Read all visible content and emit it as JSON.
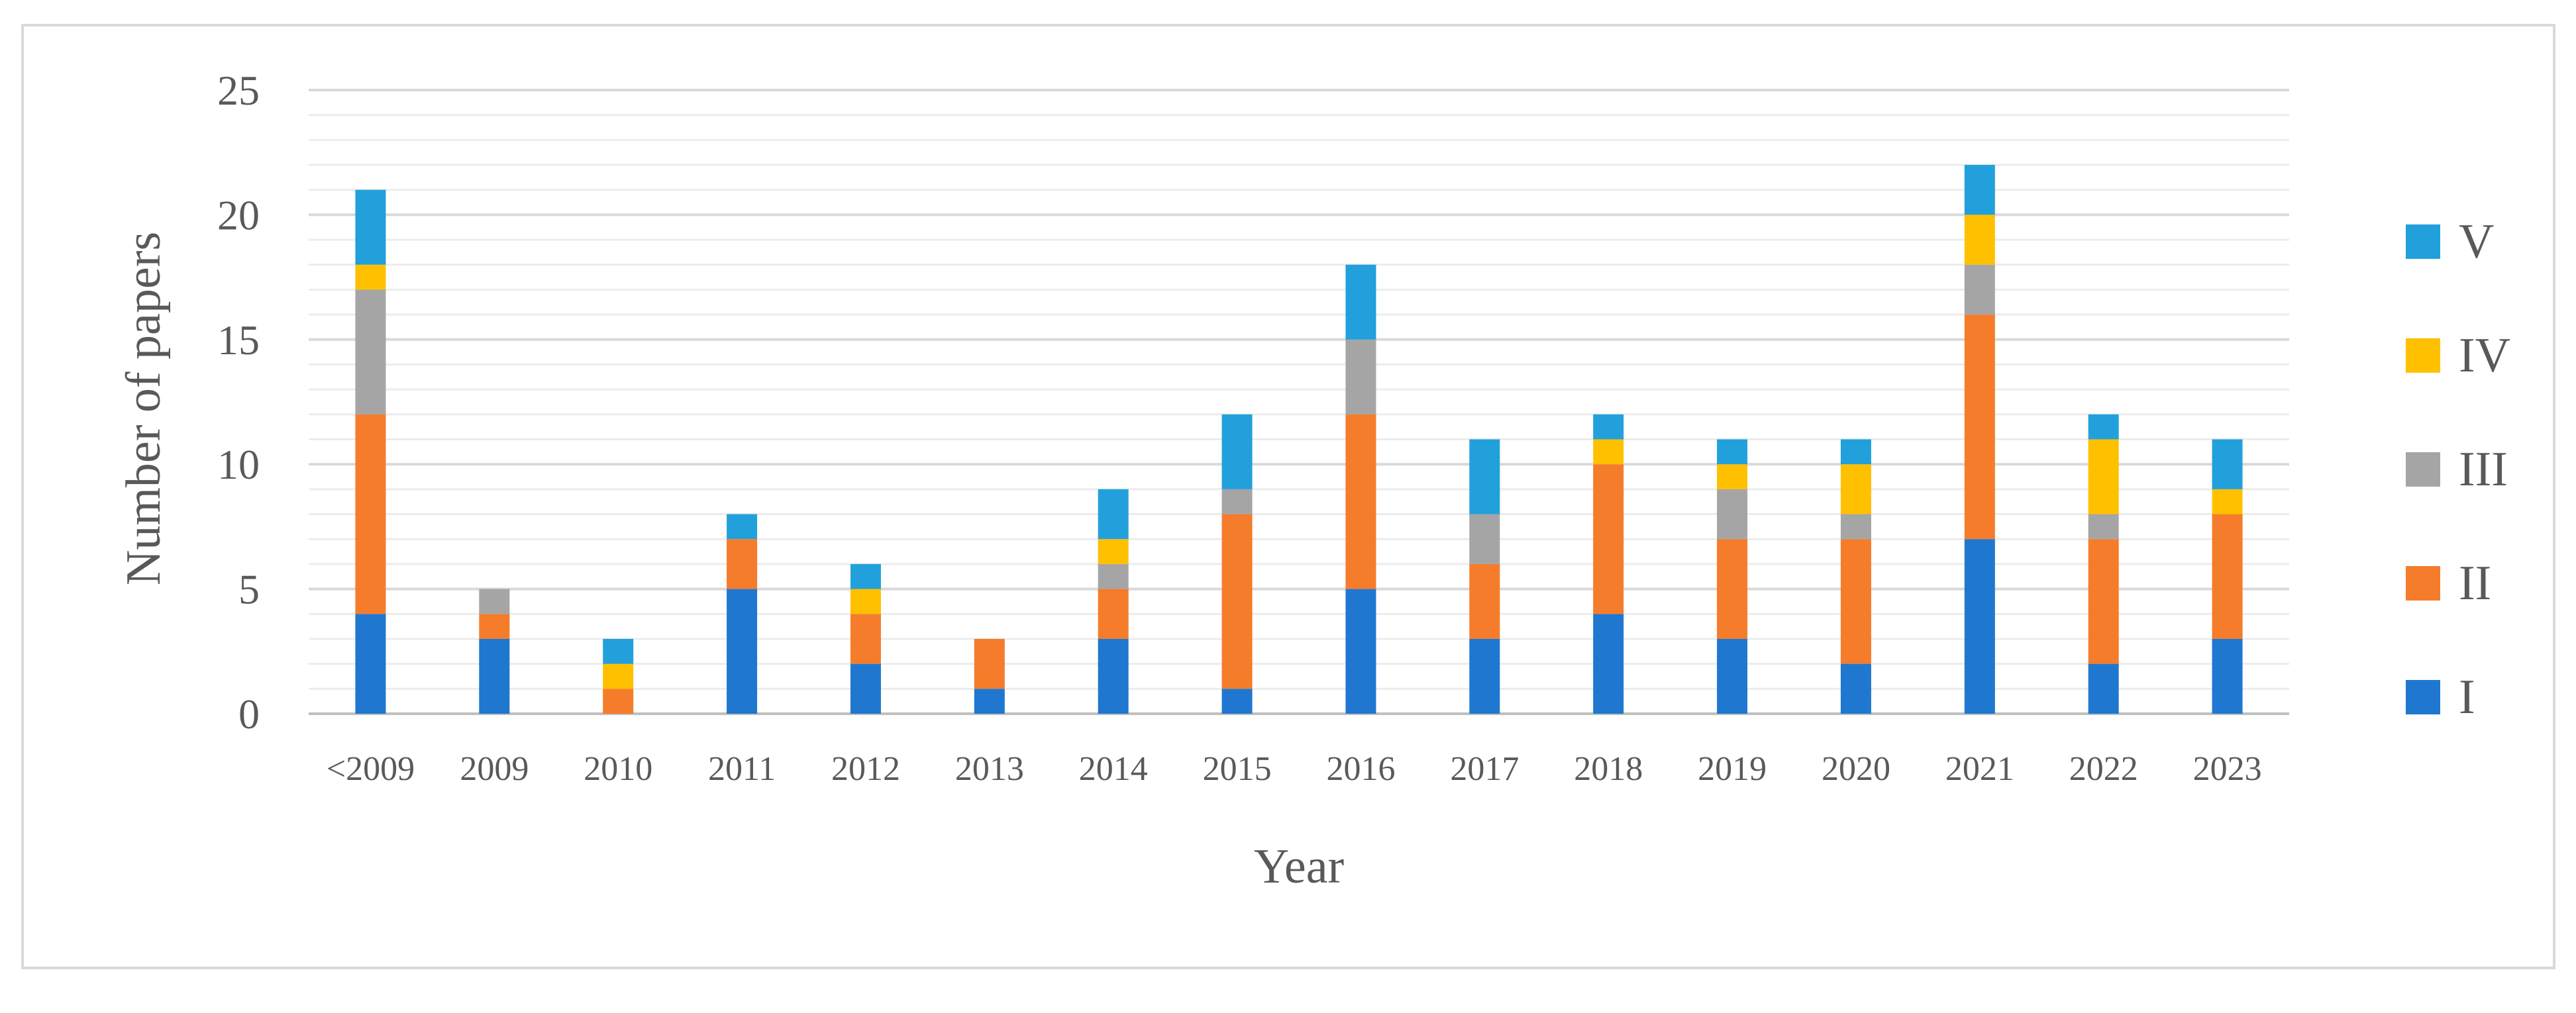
{
  "chart_data": {
    "type": "bar",
    "stacked": true,
    "title": "",
    "xlabel": "Year",
    "ylabel": "Number of papers",
    "ylim": [
      0,
      25
    ],
    "yticks": [
      0,
      5,
      10,
      15,
      20,
      25
    ],
    "grid": "horizontal major and minor",
    "legend_position": "right",
    "categories": [
      "<2009",
      "2009",
      "2010",
      "2011",
      "2012",
      "2013",
      "2014",
      "2015",
      "2016",
      "2017",
      "2018",
      "2019",
      "2020",
      "2021",
      "2022",
      "2023"
    ],
    "series": [
      {
        "name": "I",
        "color": "#1f77d0",
        "values": [
          4,
          3,
          0,
          5,
          2,
          1,
          3,
          1,
          5,
          3,
          4,
          3,
          2,
          7,
          2,
          3
        ]
      },
      {
        "name": "II",
        "color": "#f57c2a",
        "values": [
          8,
          1,
          1,
          2,
          2,
          2,
          2,
          7,
          7,
          3,
          6,
          4,
          5,
          9,
          5,
          5
        ]
      },
      {
        "name": "III",
        "color": "#a5a5a5",
        "values": [
          5,
          1,
          0,
          0,
          0,
          0,
          1,
          1,
          3,
          2,
          0,
          2,
          1,
          2,
          1,
          0
        ]
      },
      {
        "name": "IV",
        "color": "#ffc000",
        "values": [
          1,
          0,
          1,
          0,
          1,
          0,
          1,
          0,
          0,
          0,
          1,
          1,
          2,
          2,
          3,
          1
        ]
      },
      {
        "name": "V",
        "color": "#22a0dc",
        "values": [
          3,
          0,
          1,
          1,
          1,
          0,
          2,
          3,
          3,
          3,
          1,
          1,
          1,
          2,
          1,
          2
        ]
      }
    ]
  }
}
